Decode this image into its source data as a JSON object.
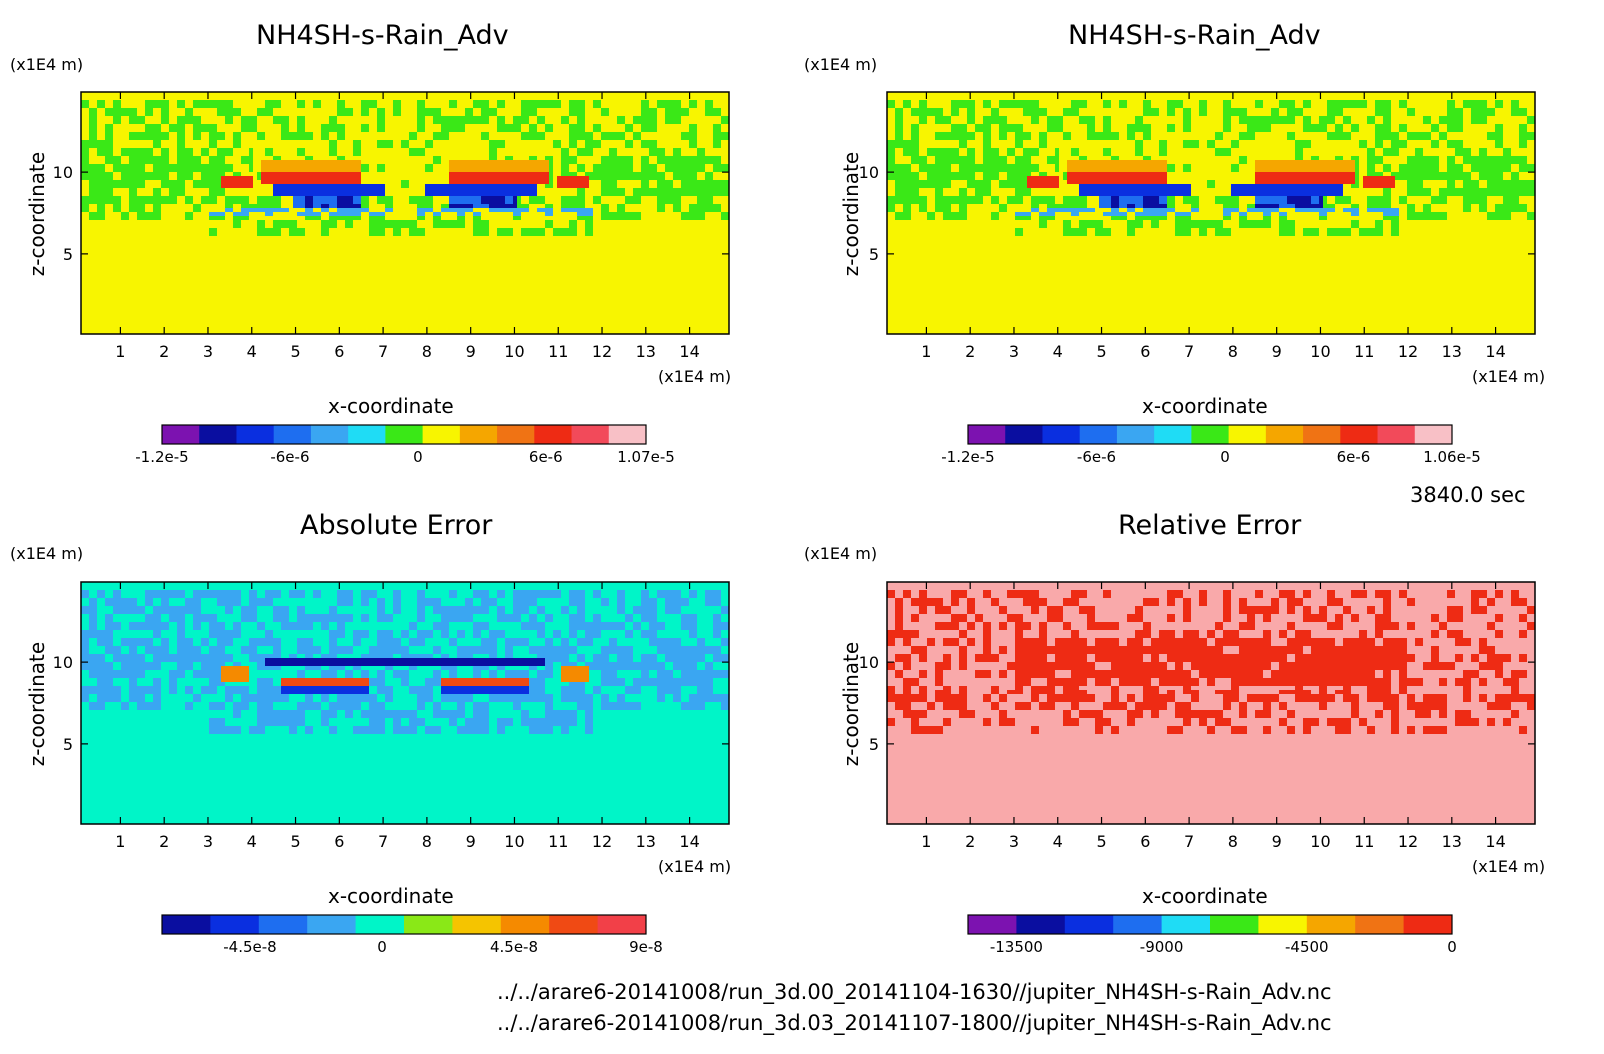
{
  "time_label": "3840.0 sec",
  "footer": {
    "line1": "../../arare6-20141008/run_3d.00_20141104-1630//jupiter_NH4SH-s-Rain_Adv.nc",
    "line2": "../../arare6-20141008/run_3d.03_20141107-1800//jupiter_NH4SH-s-Rain_Adv.nc"
  },
  "panels": [
    {
      "title": "NH4SH-s-Rain_Adv",
      "xlabel": "x-coordinate",
      "ylabel": "z-coordinate",
      "xunit": "(x1E4 m)",
      "yunit": "(x1E4 m)"
    },
    {
      "title": "NH4SH-s-Rain_Adv",
      "xlabel": "x-coordinate",
      "ylabel": "z-coordinate",
      "xunit": "(x1E4 m)",
      "yunit": "(x1E4 m)"
    },
    {
      "title": "Absolute Error",
      "xlabel": "x-coordinate",
      "ylabel": "z-coordinate",
      "xunit": "(x1E4 m)",
      "yunit": "(x1E4 m)"
    },
    {
      "title": "Relative Error",
      "xlabel": "x-coordinate",
      "ylabel": "z-coordinate",
      "xunit": "(x1E4 m)",
      "yunit": "(x1E4 m)"
    }
  ],
  "chart_data": [
    {
      "type": "heatmap",
      "title": "NH4SH-s-Rain_Adv",
      "xlabel": "x-coordinate",
      "ylabel": "z-coordinate",
      "xlim": [
        0.1,
        14.9
      ],
      "ylim": [
        0.1,
        14.9
      ],
      "xticks": [
        1,
        2,
        3,
        4,
        5,
        6,
        7,
        8,
        9,
        10,
        11,
        12,
        13,
        14
      ],
      "yticks": [
        5,
        10
      ],
      "colorbar": {
        "ticks": [
          {
            "v": -1.2e-05,
            "label": "-1.2e-5"
          },
          {
            "v": -6e-06,
            "label": "-6e-6"
          },
          {
            "v": 0,
            "label": "0"
          },
          {
            "v": 6e-06,
            "label": "6e-6"
          },
          {
            "v": 1.07e-05,
            "label": "1.07e-5"
          }
        ],
        "colors": [
          "#7c12b0",
          "#0a0ea0",
          "#0a2fe0",
          "#1e6ef0",
          "#3aa6f2",
          "#1fdcf5",
          "#3ae817",
          "#f8f500",
          "#f5a600",
          "#f07314",
          "#ee2b14",
          "#f24a5a",
          "#f8c0c6"
        ],
        "range": [
          -1.2e-05,
          1.07e-05
        ]
      },
      "background": "#f8f500"
    },
    {
      "type": "heatmap",
      "title": "NH4SH-s-Rain_Adv",
      "xlabel": "x-coordinate",
      "ylabel": "z-coordinate",
      "xlim": [
        0.1,
        14.9
      ],
      "ylim": [
        0.1,
        14.9
      ],
      "xticks": [
        1,
        2,
        3,
        4,
        5,
        6,
        7,
        8,
        9,
        10,
        11,
        12,
        13,
        14
      ],
      "yticks": [
        5,
        10
      ],
      "colorbar": {
        "ticks": [
          {
            "v": -1.2e-05,
            "label": "-1.2e-5"
          },
          {
            "v": -6e-06,
            "label": "-6e-6"
          },
          {
            "v": 0,
            "label": "0"
          },
          {
            "v": 6e-06,
            "label": "6e-6"
          },
          {
            "v": 1.06e-05,
            "label": "1.06e-5"
          }
        ],
        "colors": [
          "#7c12b0",
          "#0a0ea0",
          "#0a2fe0",
          "#1e6ef0",
          "#3aa6f2",
          "#1fdcf5",
          "#3ae817",
          "#f8f500",
          "#f5a600",
          "#f07314",
          "#ee2b14",
          "#f24a5a",
          "#f8c0c6"
        ],
        "range": [
          -1.2e-05,
          1.06e-05
        ]
      },
      "background": "#f8f500"
    },
    {
      "type": "heatmap",
      "title": "Absolute Error",
      "xlabel": "x-coordinate",
      "ylabel": "z-coordinate",
      "xlim": [
        0.1,
        14.9
      ],
      "ylim": [
        0.1,
        14.9
      ],
      "xticks": [
        1,
        2,
        3,
        4,
        5,
        6,
        7,
        8,
        9,
        10,
        11,
        12,
        13,
        14
      ],
      "yticks": [
        5,
        10
      ],
      "colorbar": {
        "ticks": [
          {
            "v": -4.5e-08,
            "label": "-4.5e-8"
          },
          {
            "v": 0,
            "label": "0"
          },
          {
            "v": 4.5e-08,
            "label": "4.5e-8"
          },
          {
            "v": 9e-08,
            "label": "9e-8"
          }
        ],
        "colors": [
          "#0a0ea0",
          "#0a2fe0",
          "#1e6ef0",
          "#3aa6f2",
          "#00f5c8",
          "#8ae817",
          "#f5c400",
          "#f58a00",
          "#f04a14",
          "#f24048"
        ],
        "range": [
          -7.5e-08,
          9e-08
        ]
      },
      "background": "#00f5c8"
    },
    {
      "type": "heatmap",
      "title": "Relative Error",
      "xlabel": "x-coordinate",
      "ylabel": "z-coordinate",
      "xlim": [
        0.1,
        14.9
      ],
      "ylim": [
        0.1,
        14.9
      ],
      "xticks": [
        1,
        2,
        3,
        4,
        5,
        6,
        7,
        8,
        9,
        10,
        11,
        12,
        13,
        14
      ],
      "yticks": [
        5,
        10
      ],
      "colorbar": {
        "ticks": [
          {
            "v": -13500,
            "label": "-13500"
          },
          {
            "v": -9000,
            "label": "-9000"
          },
          {
            "v": -4500,
            "label": "-4500"
          },
          {
            "v": 0,
            "label": "0"
          }
        ],
        "colors": [
          "#7c12b0",
          "#0a0ea0",
          "#0a2fe0",
          "#1e6ef0",
          "#1fdcf5",
          "#3ae817",
          "#f8f500",
          "#f5a600",
          "#f07314",
          "#ee2b14"
        ],
        "range": [
          -15000,
          0
        ]
      },
      "background": "#f9a9aa"
    }
  ]
}
